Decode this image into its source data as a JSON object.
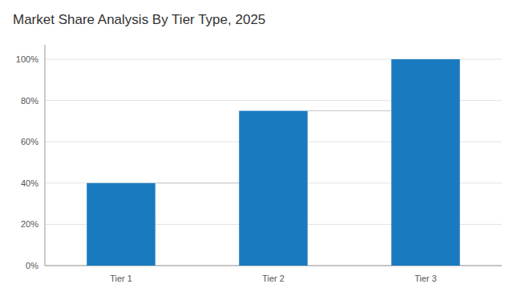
{
  "chart_data": {
    "type": "bar",
    "title": "Market Share Analysis By Tier Type, 2025",
    "categories": [
      "Tier 1",
      "Tier 2",
      "Tier 3"
    ],
    "values": [
      40,
      75,
      100
    ],
    "color": "#1a7abf",
    "ylim": [
      0,
      107
    ],
    "yticks": [
      {
        "value": 0,
        "label": "0%"
      },
      {
        "value": 20,
        "label": "20%"
      },
      {
        "value": 40,
        "label": "40%"
      },
      {
        "value": 60,
        "label": "60%"
      },
      {
        "value": 80,
        "label": "80%"
      },
      {
        "value": 100,
        "label": "100%"
      }
    ],
    "grid": true
  }
}
